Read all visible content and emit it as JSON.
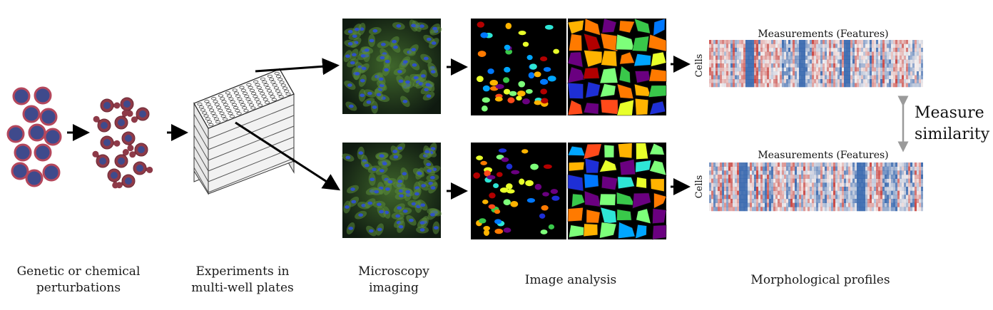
{
  "stages": [
    {
      "id": "perturbations",
      "caption": "Genetic or chemical\nperturbations"
    },
    {
      "id": "plates",
      "caption": "Experiments in\nmulti-well plates"
    },
    {
      "id": "imaging",
      "caption": "Microscopy\nimaging"
    },
    {
      "id": "analysis",
      "caption": "Image analysis"
    },
    {
      "id": "profiles",
      "caption": "Morphological profiles"
    }
  ],
  "profiles": {
    "features_label": "Measurements (Features)",
    "cells_label": "Cells"
  },
  "similarity": {
    "line1": "Measure",
    "line2": "similarity"
  },
  "colors": {
    "cell_fill": "#3f4a8c",
    "cell_border": "#b4475c",
    "cell_body": "#8e3a48",
    "micro_bg": "#0f1a12",
    "micro_green": "#5a8a3a",
    "micro_blue": "#2c4fd8",
    "heat_red": "#c4302b",
    "heat_blue": "#245aa8"
  }
}
